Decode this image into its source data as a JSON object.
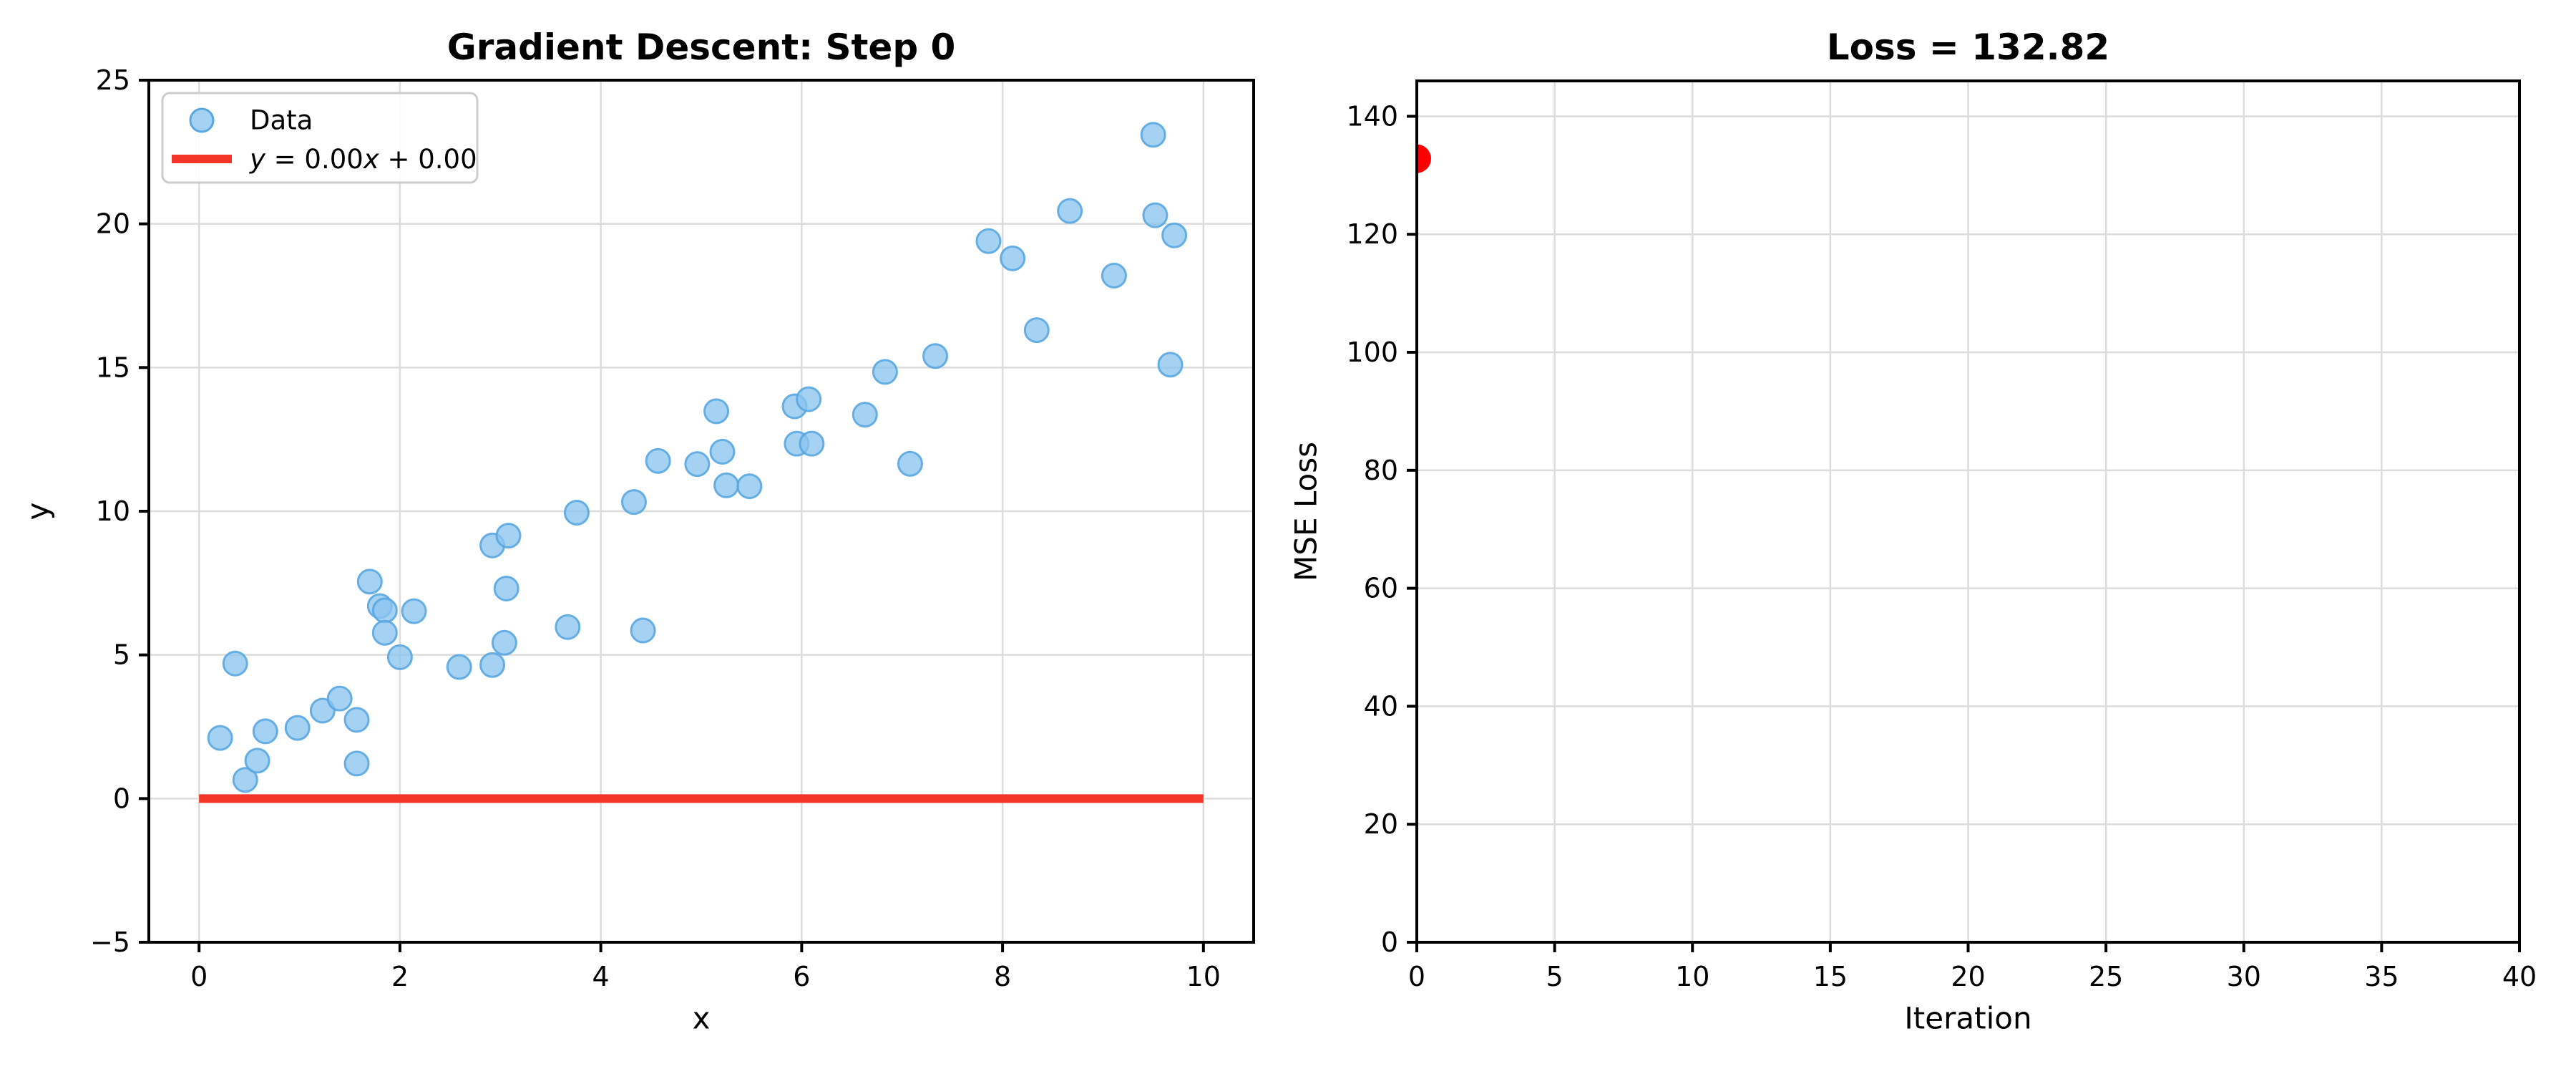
{
  "figure": {
    "background": "#ffffff",
    "spine_color": "#000000",
    "grid_color": "#dcdcdc"
  },
  "chart_data": [
    {
      "type": "scatter",
      "title": "Gradient Descent: Step 0",
      "xlabel": "x",
      "ylabel": "y",
      "xlim": [
        -0.5,
        10.5
      ],
      "ylim": [
        -5,
        25
      ],
      "xticks": [
        0,
        2,
        4,
        6,
        8,
        10
      ],
      "xtick_labels": [
        "0",
        "2",
        "4",
        "6",
        "8",
        "10"
      ],
      "yticks": [
        -5,
        0,
        5,
        10,
        15,
        20,
        25
      ],
      "ytick_labels": [
        "−5",
        "0",
        "5",
        "10",
        "15",
        "20",
        "25"
      ],
      "grid": true,
      "legend": {
        "position": "upper left",
        "entries": [
          {
            "label": "Data",
            "marker": "circle",
            "color": "#8cc4ef",
            "edge": "#5aa7e0"
          },
          {
            "label": "y = 0.00x + 0.00",
            "marker": "line",
            "color": "#f23527",
            "mathtext": true
          }
        ]
      },
      "series": [
        {
          "name": "Data",
          "kind": "scatter",
          "color": "#8cc4ef",
          "edge_color": "#5aa7e0",
          "marker_radius": 16.5,
          "points": [
            [
              0.21,
              2.11
            ],
            [
              0.36,
              4.7
            ],
            [
              0.46,
              0.65
            ],
            [
              0.58,
              1.32
            ],
            [
              0.66,
              2.34
            ],
            [
              0.98,
              2.46
            ],
            [
              1.23,
              3.06
            ],
            [
              1.4,
              3.48
            ],
            [
              1.57,
              2.74
            ],
            [
              1.57,
              1.22
            ],
            [
              1.7,
              7.55
            ],
            [
              1.8,
              6.7
            ],
            [
              1.85,
              6.55
            ],
            [
              1.85,
              5.77
            ],
            [
              2.0,
              4.92
            ],
            [
              2.14,
              6.52
            ],
            [
              2.59,
              4.58
            ],
            [
              2.92,
              4.65
            ],
            [
              2.92,
              8.81
            ],
            [
              3.04,
              5.42
            ],
            [
              3.06,
              7.31
            ],
            [
              3.08,
              9.15
            ],
            [
              3.67,
              5.97
            ],
            [
              3.76,
              9.95
            ],
            [
              4.33,
              10.32
            ],
            [
              4.42,
              5.85
            ],
            [
              4.57,
              11.75
            ],
            [
              4.96,
              11.64
            ],
            [
              5.15,
              13.48
            ],
            [
              5.21,
              12.07
            ],
            [
              5.25,
              10.9
            ],
            [
              5.48,
              10.87
            ],
            [
              5.93,
              13.65
            ],
            [
              5.95,
              12.35
            ],
            [
              6.07,
              13.9
            ],
            [
              6.1,
              12.35
            ],
            [
              6.63,
              13.36
            ],
            [
              6.83,
              14.85
            ],
            [
              7.08,
              11.65
            ],
            [
              7.33,
              15.4
            ],
            [
              7.86,
              19.4
            ],
            [
              8.1,
              18.8
            ],
            [
              8.34,
              16.3
            ],
            [
              8.67,
              20.45
            ],
            [
              9.11,
              18.2
            ],
            [
              9.5,
              23.1
            ],
            [
              9.52,
              20.3
            ],
            [
              9.67,
              15.1
            ],
            [
              9.71,
              19.6
            ]
          ]
        },
        {
          "name": "y = 0.00x + 0.00",
          "kind": "line",
          "color": "#f23527",
          "line_width": 12,
          "points": [
            [
              0,
              0
            ],
            [
              10,
              0
            ]
          ]
        }
      ]
    },
    {
      "type": "scatter",
      "title": "Loss = 132.82",
      "xlabel": "Iteration",
      "ylabel": "MSE Loss",
      "xlim": [
        0,
        40
      ],
      "ylim": [
        0,
        146
      ],
      "xticks": [
        0,
        5,
        10,
        15,
        20,
        25,
        30,
        35,
        40
      ],
      "xtick_labels": [
        "0",
        "5",
        "10",
        "15",
        "20",
        "25",
        "30",
        "35",
        "40"
      ],
      "yticks": [
        0,
        20,
        40,
        60,
        80,
        100,
        120,
        140
      ],
      "ytick_labels": [
        "0",
        "20",
        "40",
        "60",
        "80",
        "100",
        "120",
        "140"
      ],
      "grid": true,
      "legend": null,
      "series": [
        {
          "name": "loss",
          "kind": "scatter",
          "color": "#fc0000",
          "edge_color": "#fc0000",
          "marker_radius": 20,
          "points": [
            [
              0,
              132.82
            ]
          ]
        }
      ]
    }
  ]
}
